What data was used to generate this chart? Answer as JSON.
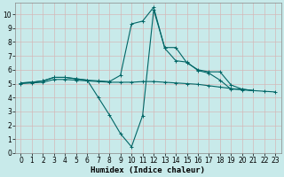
{
  "title": "",
  "xlabel": "Humidex (Indice chaleur)",
  "ylabel": "",
  "bg_color": "#c8eaea",
  "grid_color": "#d4b8b8",
  "line_color": "#006666",
  "xlim": [
    -0.5,
    23.5
  ],
  "ylim": [
    0,
    10.8
  ],
  "yticks": [
    0,
    1,
    2,
    3,
    4,
    5,
    6,
    7,
    8,
    9,
    10
  ],
  "xticks": [
    0,
    1,
    2,
    3,
    4,
    5,
    6,
    7,
    8,
    9,
    10,
    11,
    12,
    13,
    14,
    15,
    16,
    17,
    18,
    19,
    20,
    21,
    22,
    23
  ],
  "line1_x": [
    0,
    1,
    2,
    3,
    4,
    5,
    6,
    7,
    8,
    9,
    10,
    11,
    12,
    13,
    14,
    15,
    16,
    17,
    18,
    19,
    20,
    21,
    22,
    23
  ],
  "line1_y": [
    5.05,
    5.1,
    5.2,
    5.45,
    5.45,
    5.35,
    5.25,
    4.0,
    2.75,
    1.4,
    0.45,
    2.7,
    10.3,
    7.6,
    7.6,
    6.5,
    6.0,
    5.85,
    5.85,
    4.9,
    4.6,
    4.5,
    null,
    null
  ],
  "line2_x": [
    0,
    1,
    2,
    3,
    4,
    5,
    6,
    7,
    8,
    9,
    10,
    11,
    12,
    13,
    14,
    15,
    16,
    17,
    18,
    19,
    20,
    21,
    22,
    23
  ],
  "line2_y": [
    5.05,
    5.1,
    5.2,
    5.45,
    5.45,
    5.35,
    5.25,
    5.2,
    5.15,
    5.6,
    9.3,
    9.5,
    10.5,
    7.55,
    6.65,
    6.55,
    5.95,
    5.75,
    5.25,
    4.6,
    4.6,
    4.5,
    null,
    null
  ],
  "line3_x": [
    0,
    1,
    2,
    3,
    4,
    5,
    6,
    7,
    8,
    9,
    10,
    11,
    12,
    13,
    14,
    15,
    16,
    17,
    18,
    19,
    20,
    21,
    22,
    23
  ],
  "line3_y": [
    5.0,
    5.05,
    5.1,
    5.3,
    5.3,
    5.25,
    5.2,
    5.15,
    5.1,
    5.1,
    5.1,
    5.15,
    5.15,
    5.1,
    5.05,
    5.0,
    4.95,
    4.85,
    4.75,
    4.65,
    4.55,
    4.5,
    4.45,
    4.4
  ],
  "marker": "+",
  "markersize": 3,
  "linewidth": 0.8,
  "tick_fontsize": 5.5,
  "xlabel_fontsize": 6.5
}
